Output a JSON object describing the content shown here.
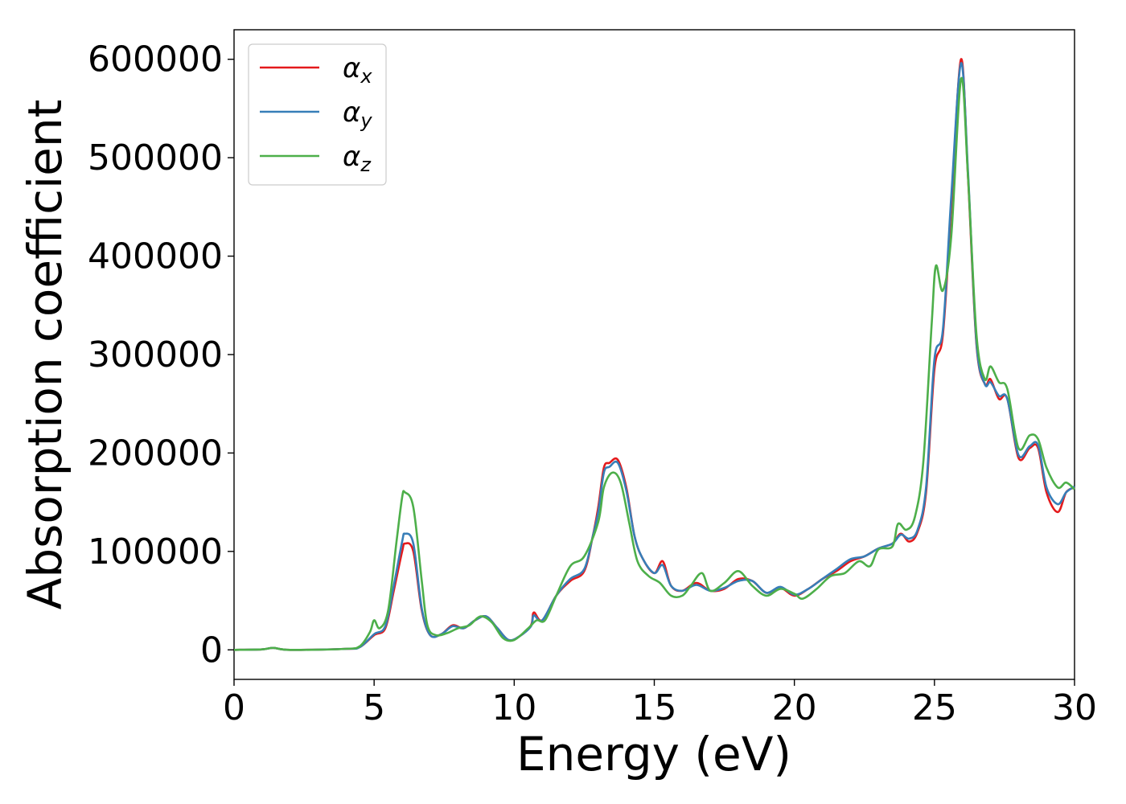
{
  "chart_data": {
    "type": "line",
    "xlabel": "Energy (eV)",
    "ylabel": "Absorption coefficient",
    "xlim": [
      0,
      30
    ],
    "ylim": [
      -30000,
      630000
    ],
    "xticks": [
      0,
      5,
      10,
      15,
      20,
      25,
      30
    ],
    "yticks": [
      0,
      100000,
      200000,
      300000,
      400000,
      500000,
      600000
    ],
    "grid": false,
    "legend_position": "upper-left",
    "series": [
      {
        "name": "α_x",
        "name_base": "α",
        "name_sub": "x",
        "color": "#e41a1c",
        "points": [
          [
            0,
            0
          ],
          [
            1,
            500
          ],
          [
            1.4,
            2000
          ],
          [
            2,
            0
          ],
          [
            4,
            1000
          ],
          [
            4.5,
            3000
          ],
          [
            5,
            15000
          ],
          [
            5.4,
            22000
          ],
          [
            5.7,
            60000
          ],
          [
            6.0,
            100000
          ],
          [
            6.1,
            108000
          ],
          [
            6.4,
            100000
          ],
          [
            6.7,
            40000
          ],
          [
            7.0,
            15000
          ],
          [
            7.4,
            16000
          ],
          [
            7.8,
            25000
          ],
          [
            8.2,
            22000
          ],
          [
            8.6,
            30000
          ],
          [
            9.0,
            34000
          ],
          [
            9.4,
            22000
          ],
          [
            9.8,
            10000
          ],
          [
            10.2,
            14000
          ],
          [
            10.6,
            25000
          ],
          [
            10.7,
            38000
          ],
          [
            11.0,
            30000
          ],
          [
            11.5,
            55000
          ],
          [
            12.0,
            70000
          ],
          [
            12.5,
            80000
          ],
          [
            12.8,
            115000
          ],
          [
            13.0,
            145000
          ],
          [
            13.2,
            185000
          ],
          [
            13.4,
            190000
          ],
          [
            13.7,
            193000
          ],
          [
            14.0,
            165000
          ],
          [
            14.3,
            115000
          ],
          [
            14.6,
            92000
          ],
          [
            15.0,
            78000
          ],
          [
            15.3,
            90000
          ],
          [
            15.6,
            65000
          ],
          [
            16.0,
            60000
          ],
          [
            16.5,
            68000
          ],
          [
            17.0,
            60000
          ],
          [
            17.5,
            62000
          ],
          [
            18.0,
            72000
          ],
          [
            18.5,
            70000
          ],
          [
            19.0,
            58000
          ],
          [
            19.5,
            63000
          ],
          [
            20.0,
            55000
          ],
          [
            20.5,
            62000
          ],
          [
            21.0,
            72000
          ],
          [
            21.5,
            80000
          ],
          [
            22.0,
            90000
          ],
          [
            22.5,
            95000
          ],
          [
            23.0,
            103000
          ],
          [
            23.5,
            108000
          ],
          [
            23.8,
            118000
          ],
          [
            24.1,
            110000
          ],
          [
            24.4,
            120000
          ],
          [
            24.7,
            160000
          ],
          [
            25.0,
            285000
          ],
          [
            25.3,
            320000
          ],
          [
            25.6,
            450000
          ],
          [
            25.95,
            600000
          ],
          [
            26.2,
            480000
          ],
          [
            26.5,
            310000
          ],
          [
            26.8,
            270000
          ],
          [
            27.0,
            275000
          ],
          [
            27.3,
            255000
          ],
          [
            27.6,
            255000
          ],
          [
            28.0,
            195000
          ],
          [
            28.4,
            205000
          ],
          [
            28.7,
            205000
          ],
          [
            29.0,
            160000
          ],
          [
            29.4,
            140000
          ],
          [
            29.7,
            160000
          ],
          [
            30.0,
            165000
          ]
        ]
      },
      {
        "name": "α_y",
        "name_base": "α",
        "name_sub": "y",
        "color": "#377eb8",
        "points": [
          [
            0,
            0
          ],
          [
            1,
            500
          ],
          [
            1.4,
            2000
          ],
          [
            2,
            0
          ],
          [
            4,
            1000
          ],
          [
            4.5,
            3000
          ],
          [
            5,
            16000
          ],
          [
            5.4,
            24000
          ],
          [
            5.7,
            65000
          ],
          [
            6.0,
            110000
          ],
          [
            6.1,
            118000
          ],
          [
            6.4,
            108000
          ],
          [
            6.7,
            42000
          ],
          [
            7.0,
            15000
          ],
          [
            7.4,
            16000
          ],
          [
            7.8,
            24000
          ],
          [
            8.2,
            22000
          ],
          [
            8.6,
            30000
          ],
          [
            9.0,
            34000
          ],
          [
            9.4,
            22000
          ],
          [
            9.8,
            10000
          ],
          [
            10.2,
            14000
          ],
          [
            10.6,
            24000
          ],
          [
            10.7,
            35000
          ],
          [
            11.0,
            30000
          ],
          [
            11.5,
            55000
          ],
          [
            12.0,
            72000
          ],
          [
            12.5,
            82000
          ],
          [
            12.8,
            115000
          ],
          [
            13.0,
            140000
          ],
          [
            13.2,
            180000
          ],
          [
            13.4,
            186000
          ],
          [
            13.7,
            190000
          ],
          [
            14.0,
            162000
          ],
          [
            14.3,
            115000
          ],
          [
            14.6,
            92000
          ],
          [
            15.0,
            78000
          ],
          [
            15.3,
            86000
          ],
          [
            15.6,
            65000
          ],
          [
            16.0,
            60000
          ],
          [
            16.5,
            66000
          ],
          [
            17.0,
            60000
          ],
          [
            17.5,
            63000
          ],
          [
            18.0,
            70000
          ],
          [
            18.5,
            70000
          ],
          [
            19.0,
            58000
          ],
          [
            19.5,
            64000
          ],
          [
            20.0,
            56000
          ],
          [
            20.5,
            62000
          ],
          [
            21.0,
            72000
          ],
          [
            21.5,
            82000
          ],
          [
            22.0,
            92000
          ],
          [
            22.5,
            95000
          ],
          [
            23.0,
            103000
          ],
          [
            23.5,
            108000
          ],
          [
            23.8,
            117000
          ],
          [
            24.1,
            113000
          ],
          [
            24.4,
            122000
          ],
          [
            24.7,
            165000
          ],
          [
            25.0,
            295000
          ],
          [
            25.3,
            325000
          ],
          [
            25.6,
            460000
          ],
          [
            25.95,
            596000
          ],
          [
            26.2,
            485000
          ],
          [
            26.5,
            312000
          ],
          [
            26.8,
            270000
          ],
          [
            27.0,
            272000
          ],
          [
            27.3,
            258000
          ],
          [
            27.6,
            255000
          ],
          [
            28.0,
            198000
          ],
          [
            28.4,
            207000
          ],
          [
            28.7,
            208000
          ],
          [
            29.0,
            165000
          ],
          [
            29.4,
            148000
          ],
          [
            29.7,
            160000
          ],
          [
            30.0,
            166000
          ]
        ]
      },
      {
        "name": "α_z",
        "name_base": "α",
        "name_sub": "z",
        "color": "#4daf4a",
        "points": [
          [
            0,
            0
          ],
          [
            1,
            500
          ],
          [
            1.4,
            2000
          ],
          [
            2,
            0
          ],
          [
            4,
            1000
          ],
          [
            4.5,
            4000
          ],
          [
            4.85,
            18000
          ],
          [
            5.0,
            30000
          ],
          [
            5.2,
            22000
          ],
          [
            5.5,
            40000
          ],
          [
            5.8,
            110000
          ],
          [
            6.0,
            155000
          ],
          [
            6.1,
            160000
          ],
          [
            6.4,
            145000
          ],
          [
            6.7,
            70000
          ],
          [
            6.9,
            25000
          ],
          [
            7.2,
            15000
          ],
          [
            7.6,
            17000
          ],
          [
            8.0,
            22000
          ],
          [
            8.4,
            25000
          ],
          [
            8.8,
            34000
          ],
          [
            9.2,
            28000
          ],
          [
            9.6,
            12000
          ],
          [
            10.0,
            10000
          ],
          [
            10.5,
            22000
          ],
          [
            10.8,
            30000
          ],
          [
            11.1,
            30000
          ],
          [
            11.5,
            55000
          ],
          [
            12.0,
            85000
          ],
          [
            12.5,
            95000
          ],
          [
            13.0,
            130000
          ],
          [
            13.2,
            165000
          ],
          [
            13.5,
            180000
          ],
          [
            13.8,
            170000
          ],
          [
            14.1,
            130000
          ],
          [
            14.4,
            90000
          ],
          [
            14.8,
            75000
          ],
          [
            15.2,
            68000
          ],
          [
            15.6,
            55000
          ],
          [
            16.0,
            55000
          ],
          [
            16.3,
            65000
          ],
          [
            16.7,
            78000
          ],
          [
            17.0,
            60000
          ],
          [
            17.5,
            68000
          ],
          [
            18.0,
            80000
          ],
          [
            18.5,
            65000
          ],
          [
            19.0,
            55000
          ],
          [
            19.5,
            62000
          ],
          [
            20.0,
            57000
          ],
          [
            20.3,
            52000
          ],
          [
            20.8,
            62000
          ],
          [
            21.3,
            75000
          ],
          [
            21.8,
            78000
          ],
          [
            22.3,
            90000
          ],
          [
            22.7,
            85000
          ],
          [
            23.0,
            102000
          ],
          [
            23.5,
            105000
          ],
          [
            23.7,
            128000
          ],
          [
            24.0,
            122000
          ],
          [
            24.3,
            135000
          ],
          [
            24.6,
            190000
          ],
          [
            24.9,
            330000
          ],
          [
            25.05,
            390000
          ],
          [
            25.3,
            365000
          ],
          [
            25.6,
            420000
          ],
          [
            25.95,
            580000
          ],
          [
            26.2,
            480000
          ],
          [
            26.5,
            320000
          ],
          [
            26.8,
            275000
          ],
          [
            27.0,
            288000
          ],
          [
            27.3,
            272000
          ],
          [
            27.6,
            265000
          ],
          [
            28.0,
            205000
          ],
          [
            28.4,
            218000
          ],
          [
            28.7,
            214000
          ],
          [
            29.0,
            185000
          ],
          [
            29.4,
            165000
          ],
          [
            29.7,
            170000
          ],
          [
            30.0,
            163000
          ]
        ]
      }
    ]
  }
}
